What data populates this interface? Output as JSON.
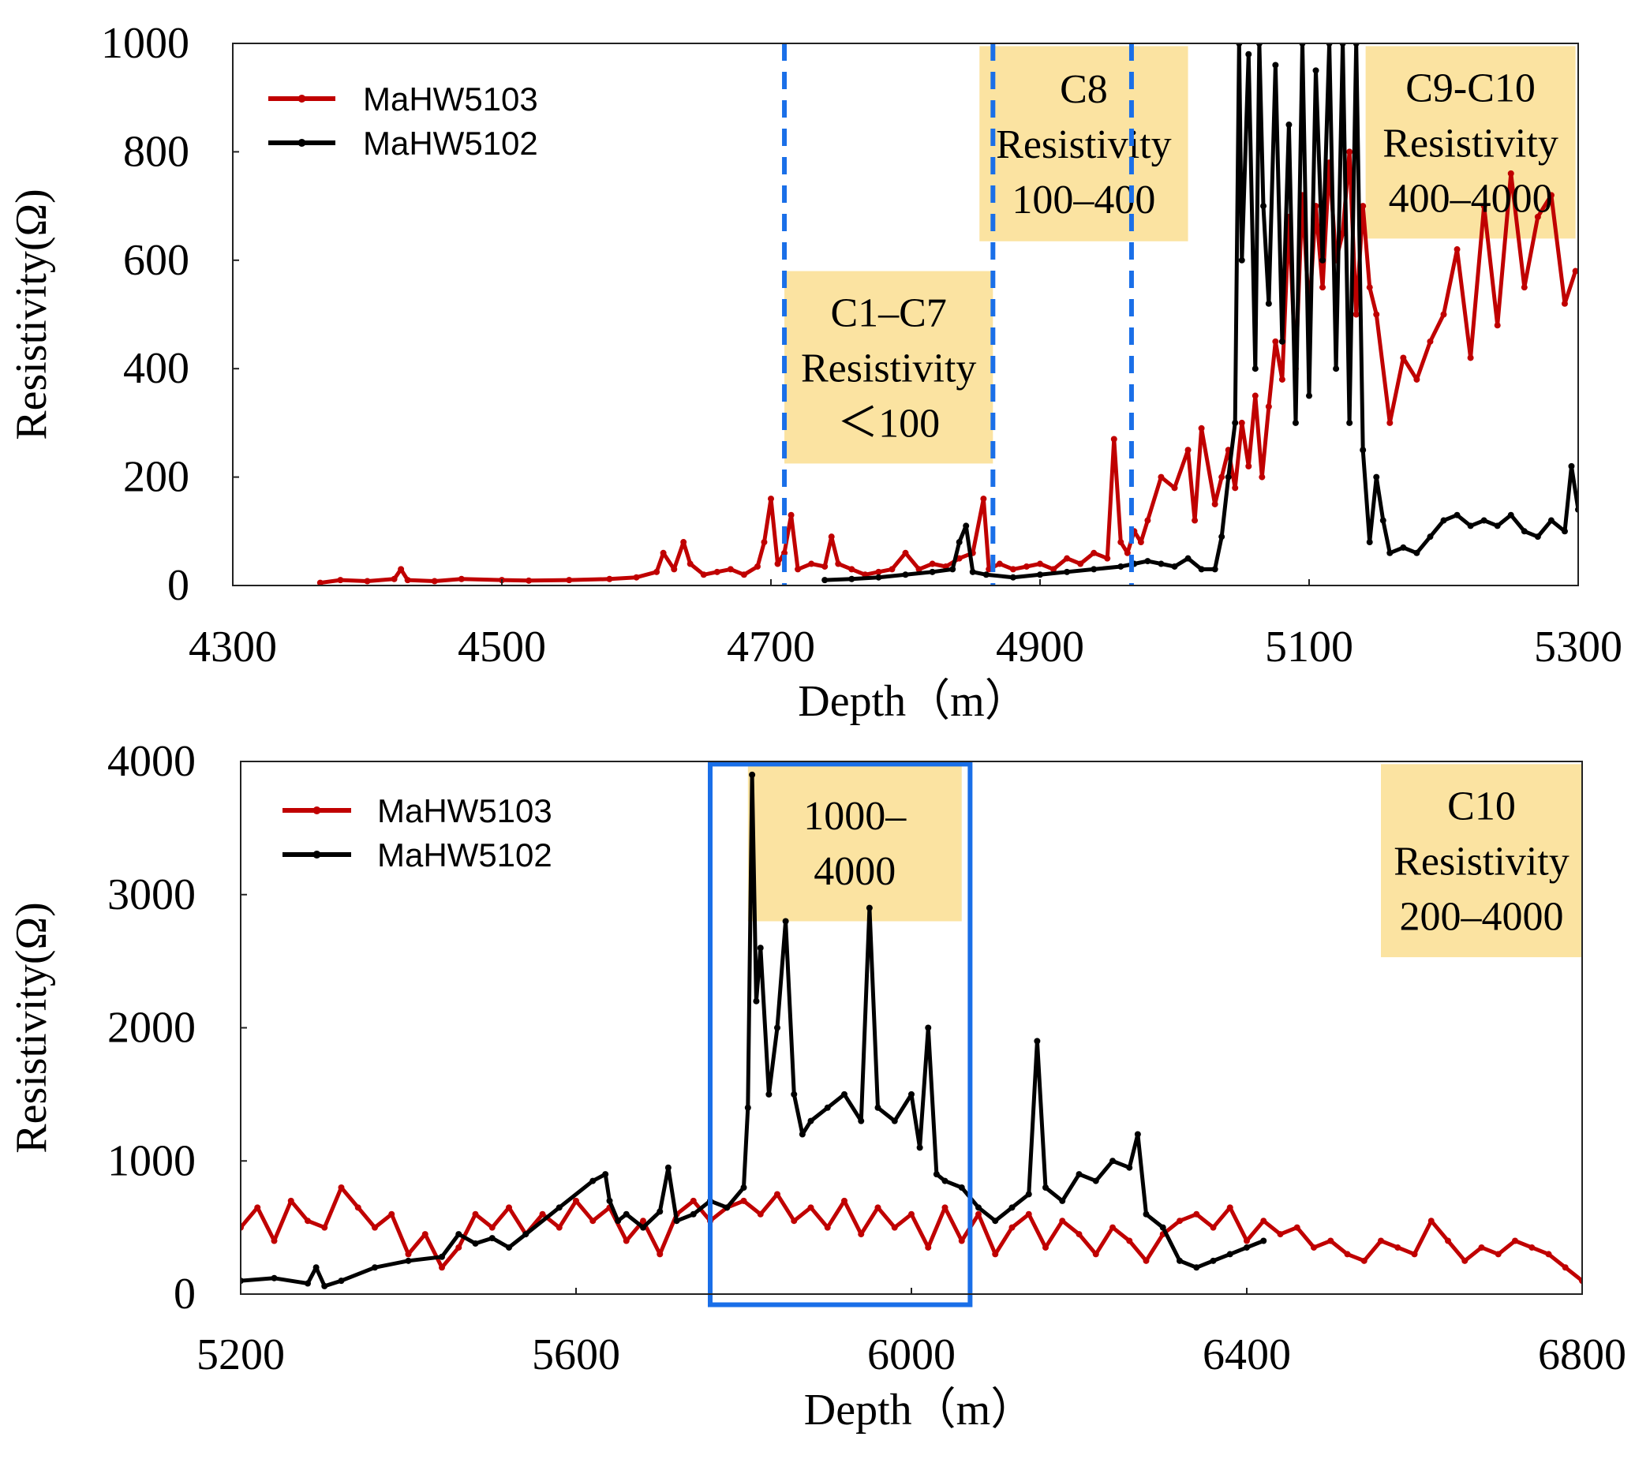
{
  "chart_data": [
    {
      "type": "line",
      "xlabel": "Depth（m）",
      "ylabel": "Resistivity(Ω)",
      "xlim": [
        4300,
        5300
      ],
      "ylim": [
        0,
        1000
      ],
      "xticks": [
        4300,
        4500,
        4700,
        4900,
        5100,
        5300
      ],
      "yticks": [
        0,
        200,
        400,
        600,
        800,
        1000
      ],
      "legend": [
        "MaHW5103",
        "MaHW5102"
      ],
      "legend_position": "top-left",
      "divider_lines_x": [
        4710,
        4865,
        4968
      ],
      "annotations": [
        {
          "lines": [
            "C1–C7",
            "Resistivity",
            "＜100"
          ],
          "x_range": [
            4710,
            4865
          ],
          "y_range": [
            225,
            580
          ],
          "color": "#fbe3a1"
        },
        {
          "lines": [
            "C8",
            "Resistivity",
            "100–400"
          ],
          "x_range": [
            4855,
            5010
          ],
          "y_range": [
            635,
            995
          ],
          "color": "#fbe3a1"
        },
        {
          "lines": [
            "C9-C10",
            "Resistivity",
            "400–4000"
          ],
          "x_range": [
            5142,
            5298
          ],
          "y_range": [
            640,
            995
          ],
          "color": "#fbe3a1"
        }
      ],
      "series": [
        {
          "name": "MaHW5103",
          "color": "#c00000",
          "x": [
            4365,
            4380,
            4400,
            4420,
            4425,
            4430,
            4450,
            4470,
            4500,
            4520,
            4550,
            4580,
            4600,
            4615,
            4620,
            4628,
            4635,
            4640,
            4650,
            4660,
            4670,
            4680,
            4690,
            4695,
            4700,
            4705,
            4710,
            4715,
            4720,
            4730,
            4740,
            4745,
            4750,
            4760,
            4770,
            4780,
            4790,
            4800,
            4810,
            4820,
            4830,
            4840,
            4850,
            4858,
            4862,
            4870,
            4880,
            4890,
            4900,
            4910,
            4920,
            4930,
            4940,
            4950,
            4955,
            4960,
            4965,
            4970,
            4975,
            4980,
            4990,
            5000,
            5010,
            5015,
            5020,
            5030,
            5035,
            5040,
            5045,
            5050,
            5055,
            5060,
            5065,
            5070,
            5075,
            5080,
            5085,
            5090,
            5095,
            5100,
            5105,
            5110,
            5115,
            5120,
            5125,
            5130,
            5135,
            5140,
            5145,
            5150,
            5160,
            5170,
            5180,
            5190,
            5200,
            5210,
            5220,
            5230,
            5240,
            5250,
            5260,
            5270,
            5280,
            5290,
            5298
          ],
          "y": [
            5,
            10,
            8,
            12,
            30,
            10,
            8,
            12,
            10,
            9,
            10,
            12,
            15,
            25,
            60,
            30,
            80,
            40,
            20,
            25,
            30,
            20,
            35,
            80,
            160,
            40,
            60,
            130,
            30,
            40,
            35,
            90,
            40,
            30,
            20,
            25,
            30,
            60,
            30,
            40,
            35,
            50,
            60,
            160,
            30,
            40,
            30,
            35,
            40,
            30,
            50,
            40,
            60,
            50,
            270,
            80,
            60,
            100,
            80,
            120,
            200,
            180,
            250,
            120,
            290,
            150,
            200,
            250,
            180,
            300,
            220,
            350,
            200,
            330,
            450,
            380,
            680,
            400,
            720,
            500,
            700,
            550,
            780,
            600,
            650,
            800,
            500,
            700,
            550,
            500,
            300,
            420,
            380,
            450,
            500,
            620,
            420,
            700,
            480,
            760,
            550,
            680,
            720,
            520,
            580
          ]
        },
        {
          "name": "MaHW5102",
          "color": "#000000",
          "x": [
            4740,
            4760,
            4780,
            4800,
            4820,
            4835,
            4840,
            4845,
            4850,
            4860,
            4880,
            4900,
            4920,
            4940,
            4960,
            4970,
            4980,
            4990,
            5000,
            5010,
            5020,
            5030,
            5035,
            5040,
            5045,
            5048,
            5050,
            5055,
            5060,
            5063,
            5066,
            5070,
            5075,
            5080,
            5085,
            5090,
            5095,
            5100,
            5105,
            5110,
            5115,
            5120,
            5125,
            5130,
            5135,
            5140,
            5145,
            5150,
            5155,
            5160,
            5170,
            5180,
            5190,
            5200,
            5210,
            5220,
            5230,
            5240,
            5250,
            5260,
            5270,
            5280,
            5290,
            5295,
            5300
          ],
          "y": [
            10,
            12,
            15,
            20,
            25,
            30,
            80,
            110,
            25,
            20,
            15,
            20,
            25,
            30,
            35,
            40,
            45,
            40,
            35,
            50,
            30,
            30,
            90,
            200,
            300,
            1000,
            600,
            980,
            400,
            1000,
            700,
            520,
            960,
            450,
            850,
            300,
            1000,
            350,
            950,
            600,
            1000,
            400,
            1000,
            300,
            1000,
            250,
            80,
            200,
            120,
            60,
            70,
            60,
            90,
            120,
            130,
            110,
            120,
            110,
            130,
            100,
            90,
            120,
            100,
            220,
            140
          ]
        }
      ]
    },
    {
      "type": "line",
      "xlabel": "Depth（m）",
      "ylabel": "Resistivity(Ω)",
      "xlim": [
        5200,
        6800
      ],
      "ylim": [
        0,
        4000
      ],
      "xticks": [
        5200,
        5600,
        6000,
        6400,
        6800
      ],
      "yticks": [
        0,
        1000,
        2000,
        3000,
        4000
      ],
      "legend": [
        "MaHW5103",
        "MaHW5102"
      ],
      "legend_position": "top-left",
      "highlight_box": {
        "x_range": [
          5760,
          6070
        ],
        "y_range": [
          -80,
          3980
        ],
        "color": "#1a6fe8"
      },
      "annotations": [
        {
          "lines": [
            "1000–",
            "4000"
          ],
          "x_range": [
            5805,
            6060
          ],
          "y_range": [
            2800,
            3980
          ],
          "color": "#fbe3a1"
        },
        {
          "lines": [
            "C10",
            "Resistivity",
            "200–4000"
          ],
          "x_range": [
            6560,
            6800
          ],
          "y_range": [
            2530,
            3980
          ],
          "color": "#fbe3a1"
        }
      ],
      "series": [
        {
          "name": "MaHW5103",
          "color": "#c00000",
          "x": [
            5200,
            5220,
            5240,
            5260,
            5280,
            5300,
            5320,
            5340,
            5360,
            5380,
            5400,
            5420,
            5440,
            5460,
            5480,
            5500,
            5520,
            5540,
            5560,
            5580,
            5600,
            5620,
            5640,
            5660,
            5680,
            5700,
            5720,
            5740,
            5760,
            5780,
            5800,
            5820,
            5840,
            5860,
            5880,
            5900,
            5920,
            5940,
            5960,
            5980,
            6000,
            6020,
            6040,
            6060,
            6080,
            6100,
            6120,
            6140,
            6160,
            6180,
            6200,
            6220,
            6240,
            6260,
            6280,
            6300,
            6320,
            6340,
            6360,
            6380,
            6400,
            6420,
            6440,
            6460,
            6480,
            6500,
            6520,
            6540,
            6560,
            6580,
            6600,
            6620,
            6640,
            6660,
            6680,
            6700,
            6720,
            6740,
            6760,
            6780,
            6800
          ],
          "y": [
            500,
            650,
            400,
            700,
            550,
            500,
            800,
            650,
            500,
            600,
            300,
            450,
            200,
            350,
            600,
            500,
            650,
            450,
            600,
            500,
            700,
            550,
            650,
            400,
            550,
            300,
            600,
            700,
            550,
            650,
            700,
            600,
            750,
            550,
            650,
            500,
            700,
            450,
            650,
            500,
            600,
            350,
            650,
            400,
            600,
            300,
            500,
            600,
            350,
            550,
            450,
            300,
            500,
            400,
            250,
            450,
            550,
            600,
            500,
            650,
            400,
            550,
            450,
            500,
            350,
            400,
            300,
            250,
            400,
            350,
            300,
            550,
            400,
            250,
            350,
            300,
            400,
            350,
            300,
            200,
            100
          ]
        },
        {
          "name": "MaHW5102",
          "color": "#000000",
          "x": [
            5200,
            5240,
            5280,
            5290,
            5300,
            5320,
            5360,
            5400,
            5440,
            5460,
            5480,
            5500,
            5520,
            5540,
            5580,
            5620,
            5635,
            5640,
            5650,
            5660,
            5680,
            5700,
            5710,
            5720,
            5740,
            5760,
            5780,
            5800,
            5805,
            5810,
            5815,
            5820,
            5830,
            5840,
            5850,
            5860,
            5870,
            5880,
            5900,
            5920,
            5940,
            5950,
            5960,
            5980,
            6000,
            6010,
            6020,
            6030,
            6040,
            6060,
            6080,
            6100,
            6120,
            6140,
            6150,
            6160,
            6180,
            6200,
            6220,
            6240,
            6260,
            6270,
            6280,
            6300,
            6320,
            6340,
            6360,
            6380,
            6400,
            6420
          ],
          "y": [
            100,
            120,
            80,
            200,
            60,
            100,
            200,
            250,
            280,
            450,
            380,
            420,
            350,
            450,
            650,
            850,
            900,
            700,
            550,
            600,
            500,
            620,
            950,
            550,
            600,
            700,
            650,
            800,
            1400,
            3900,
            2200,
            2600,
            1500,
            2000,
            2800,
            1500,
            1200,
            1300,
            1400,
            1500,
            1300,
            2900,
            1400,
            1300,
            1500,
            1100,
            2000,
            900,
            850,
            800,
            650,
            550,
            650,
            750,
            1900,
            800,
            700,
            900,
            850,
            1000,
            950,
            1200,
            600,
            500,
            250,
            200,
            250,
            300,
            350,
            400
          ]
        }
      ]
    }
  ]
}
